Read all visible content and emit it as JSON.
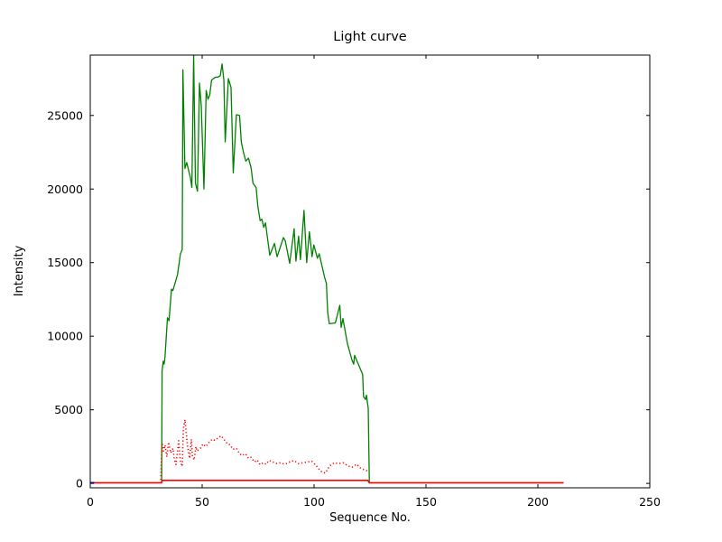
{
  "figure": {
    "background": "#ffffff",
    "spine_color": "#000000",
    "tick_color": "#000000",
    "text_color": "#000000"
  },
  "chart_data": {
    "type": "line",
    "title": "Light curve",
    "xlabel": "Sequence No.",
    "ylabel": "Intensity",
    "xlim": [
      0,
      250
    ],
    "ylim": [
      -300,
      29100
    ],
    "xticks": [
      0,
      50,
      100,
      150,
      200,
      250
    ],
    "yticks": [
      0,
      5000,
      10000,
      15000,
      20000,
      25000
    ],
    "grid": false,
    "legend": null,
    "tick_direction": "in",
    "series": [
      {
        "name": "main-intensity",
        "color": "#008000",
        "linestyle": "solid",
        "linewidth": 1.3,
        "points": [
          [
            31.9,
            0
          ],
          [
            32.1,
            7650
          ],
          [
            32.6,
            8300
          ],
          [
            33.0,
            8100
          ],
          [
            33.4,
            8600
          ],
          [
            34.5,
            11250
          ],
          [
            35.2,
            11050
          ],
          [
            36.3,
            13200
          ],
          [
            36.9,
            13100
          ],
          [
            37.6,
            13450
          ],
          [
            39.0,
            14200
          ],
          [
            40.3,
            15600
          ],
          [
            41.1,
            15900
          ],
          [
            41.4,
            28100
          ],
          [
            42.3,
            21400
          ],
          [
            43.1,
            21800
          ],
          [
            43.9,
            21300
          ],
          [
            44.7,
            20800
          ],
          [
            45.4,
            20100
          ],
          [
            46.2,
            29050
          ],
          [
            47.0,
            20400
          ],
          [
            47.9,
            19850
          ],
          [
            48.8,
            27200
          ],
          [
            49.6,
            25650
          ],
          [
            50.8,
            20000
          ],
          [
            51.8,
            26700
          ],
          [
            52.6,
            26100
          ],
          [
            53.4,
            26400
          ],
          [
            54.2,
            27400
          ],
          [
            55.0,
            27500
          ],
          [
            56.0,
            27600
          ],
          [
            57.0,
            27600
          ],
          [
            58.1,
            27700
          ],
          [
            58.9,
            28500
          ],
          [
            59.7,
            27400
          ],
          [
            60.3,
            23200
          ],
          [
            61.7,
            27500
          ],
          [
            62.9,
            26900
          ],
          [
            63.9,
            21100
          ],
          [
            65.3,
            25050
          ],
          [
            66.7,
            25000
          ],
          [
            67.5,
            23200
          ],
          [
            68.3,
            22600
          ],
          [
            69.5,
            21900
          ],
          [
            70.7,
            22100
          ],
          [
            71.9,
            21400
          ],
          [
            72.7,
            20400
          ],
          [
            74.1,
            20100
          ],
          [
            74.9,
            18800
          ],
          [
            75.9,
            17850
          ],
          [
            76.7,
            17950
          ],
          [
            77.5,
            17400
          ],
          [
            78.3,
            17700
          ],
          [
            80.2,
            15500
          ],
          [
            82.3,
            16300
          ],
          [
            83.5,
            15400
          ],
          [
            86.3,
            16700
          ],
          [
            87.1,
            16500
          ],
          [
            89.1,
            14950
          ],
          [
            91.1,
            17300
          ],
          [
            91.9,
            15100
          ],
          [
            93.1,
            16800
          ],
          [
            93.9,
            15200
          ],
          [
            95.5,
            18550
          ],
          [
            96.7,
            15000
          ],
          [
            97.9,
            17100
          ],
          [
            99.1,
            15400
          ],
          [
            99.9,
            16200
          ],
          [
            101.5,
            15300
          ],
          [
            102.3,
            15600
          ],
          [
            103.5,
            14800
          ],
          [
            104.7,
            14000
          ],
          [
            105.5,
            13600
          ],
          [
            106.1,
            11600
          ],
          [
            106.8,
            10850
          ],
          [
            109.5,
            10900
          ],
          [
            111.5,
            12100
          ],
          [
            112.1,
            10600
          ],
          [
            112.9,
            11200
          ],
          [
            114.9,
            9500
          ],
          [
            116.9,
            8400
          ],
          [
            117.7,
            8100
          ],
          [
            118.1,
            8700
          ],
          [
            121.7,
            7400
          ],
          [
            122.1,
            5900
          ],
          [
            123.0,
            5700
          ],
          [
            123.4,
            6000
          ],
          [
            124.2,
            5100
          ],
          [
            124.7,
            0
          ]
        ]
      },
      {
        "name": "secondary-intensity",
        "color": "#ff0000",
        "linestyle": "dotted",
        "linewidth": 1.6,
        "points": [
          [
            31.5,
            250
          ],
          [
            31.6,
            700
          ],
          [
            31.7,
            1250
          ],
          [
            31.9,
            1900
          ],
          [
            32.1,
            2750
          ],
          [
            32.7,
            2200
          ],
          [
            33.4,
            2600
          ],
          [
            34.2,
            1800
          ],
          [
            35.0,
            2800
          ],
          [
            35.9,
            2070
          ],
          [
            37.0,
            2380
          ],
          [
            37.6,
            1590
          ],
          [
            38.3,
            1280
          ],
          [
            39.1,
            2320
          ],
          [
            39.5,
            2900
          ],
          [
            40.3,
            1460
          ],
          [
            41.1,
            1160
          ],
          [
            41.6,
            3700
          ],
          [
            42.3,
            4330
          ],
          [
            43.1,
            3100
          ],
          [
            43.5,
            2500
          ],
          [
            44.4,
            1700
          ],
          [
            45.2,
            3000
          ],
          [
            45.6,
            1900
          ],
          [
            46.4,
            1590
          ],
          [
            47.2,
            2500
          ],
          [
            47.7,
            2200
          ],
          [
            49.2,
            2380
          ],
          [
            50.4,
            2680
          ],
          [
            51.6,
            2500
          ],
          [
            53.2,
            2800
          ],
          [
            54.4,
            3000
          ],
          [
            55.6,
            2930
          ],
          [
            57.3,
            3110
          ],
          [
            58.5,
            3230
          ],
          [
            59.7,
            3000
          ],
          [
            61.3,
            2680
          ],
          [
            62.5,
            2620
          ],
          [
            63.7,
            2320
          ],
          [
            65.3,
            2380
          ],
          [
            66.5,
            2070
          ],
          [
            67.7,
            1890
          ],
          [
            69.4,
            2010
          ],
          [
            70.6,
            1710
          ],
          [
            71.8,
            1770
          ],
          [
            73.4,
            1460
          ],
          [
            74.6,
            1590
          ],
          [
            75.8,
            1280
          ],
          [
            77.4,
            1400
          ],
          [
            78.6,
            1300
          ],
          [
            79.8,
            1550
          ],
          [
            81.0,
            1500
          ],
          [
            83.0,
            1350
          ],
          [
            85.0,
            1400
          ],
          [
            87.0,
            1300
          ],
          [
            89.0,
            1450
          ],
          [
            91.0,
            1550
          ],
          [
            93.0,
            1350
          ],
          [
            95.0,
            1400
          ],
          [
            97.0,
            1450
          ],
          [
            99.0,
            1500
          ],
          [
            101.0,
            1200
          ],
          [
            103.0,
            820
          ],
          [
            105.0,
            700
          ],
          [
            107.0,
            1200
          ],
          [
            109.0,
            1400
          ],
          [
            111.0,
            1350
          ],
          [
            113.0,
            1400
          ],
          [
            115.0,
            1200
          ],
          [
            117.0,
            1100
          ],
          [
            119.0,
            1300
          ],
          [
            121.0,
            1000
          ],
          [
            123.0,
            900
          ],
          [
            124.5,
            800
          ]
        ]
      },
      {
        "name": "baseline-intensity",
        "color": "#ff0000",
        "linestyle": "solid",
        "linewidth": 1.6,
        "points": [
          [
            0,
            40
          ],
          [
            31.8,
            40
          ],
          [
            32.2,
            200
          ],
          [
            124.0,
            200
          ],
          [
            124.7,
            40
          ],
          [
            211.5,
            40
          ]
        ]
      },
      {
        "name": "start-segment",
        "color": "#0000ff",
        "linestyle": "solid",
        "linewidth": 1.8,
        "points": [
          [
            0,
            40
          ],
          [
            1.8,
            40
          ]
        ]
      }
    ]
  }
}
